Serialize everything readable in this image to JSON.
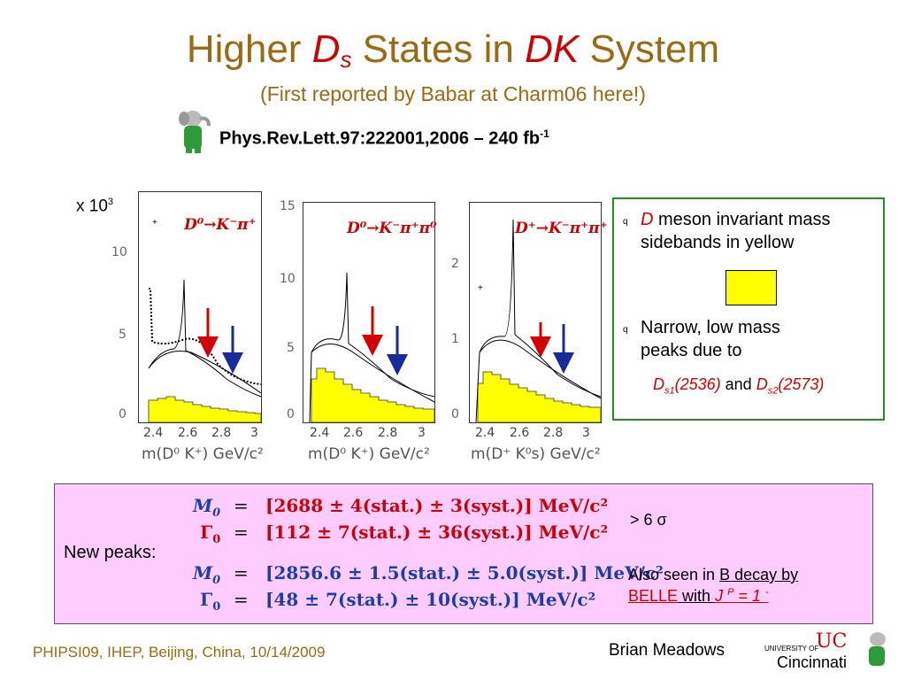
{
  "title": {
    "pre": "Higher ",
    "d": "D",
    "s": "s",
    "mid": " States in ",
    "dk": "DK",
    "post": " System"
  },
  "subtitle": "(First reported by Babar at Charm06 here!)",
  "reference": {
    "text": "Phys.Rev.Lett.97:222001,2006 – 240 fb",
    "sup": "-1"
  },
  "plots": {
    "multiplier": "x 10",
    "multiplier_exp": "3",
    "panels": [
      {
        "channel": "D⁰→K⁻π⁺",
        "yticks": [
          "10",
          "5",
          "0"
        ],
        "xticks": [
          "2.4",
          "2.6",
          "2.8",
          "3"
        ],
        "xlabel": "m(D⁰ K⁺) GeV/c²"
      },
      {
        "channel": "D⁰→K⁻π⁺π⁰",
        "yticks": [
          "15",
          "10",
          "5",
          "0"
        ],
        "xticks": [
          "2.4",
          "2.6",
          "2.8",
          "3"
        ],
        "xlabel": "m(D⁰ K⁺) GeV/c²"
      },
      {
        "channel": "D⁺→K⁻π⁺π⁺",
        "yticks": [
          "2",
          "1",
          "0"
        ],
        "xticks": [
          "2.4",
          "2.6",
          "2.8",
          "3"
        ],
        "xlabel": "m(D⁺ K⁰s) GeV/c²"
      }
    ]
  },
  "bullets": [
    {
      "marker": "q",
      "d": "D",
      "text": " meson invariant mass sidebands in yellow"
    },
    {
      "marker": "q",
      "text": "Narrow, low mass peaks due to"
    }
  ],
  "states": {
    "s1": "D",
    "s1sub": "s1",
    "s1mass": "(2536)",
    "and": " and ",
    "s2": "D",
    "s2sub": "s2",
    "s2mass": "(2573)"
  },
  "new_peaks": {
    "label": "New peaks:",
    "rows": [
      {
        "sym": "M",
        "sub": "0",
        "eq": "=",
        "val": "[2688 ± 4(stat.) ± 3(syst.)] MeV/c²"
      },
      {
        "sym": "Γ",
        "sub": "0",
        "eq": "=",
        "val": "[112 ± 7(stat.) ± 36(syst.)] MeV/c²"
      },
      {
        "sym": "M",
        "sub": "0",
        "eq": "=",
        "val": "[2856.6 ± 1.5(stat.) ± 5.0(syst.)] MeV/c²"
      },
      {
        "sym": "Γ",
        "sub": "0",
        "eq": "=",
        "val": "[48 ± 7(stat.) ± 10(syst.)] MeV/c²"
      }
    ],
    "significance": "> 6 σ",
    "also_seen": {
      "pre": "Also seen in ",
      "link": "B decay by",
      "belle": "BELLE",
      "with": " with ",
      "jp": "J ",
      "p": "P",
      "val": " = 1 ",
      "minus": "-"
    }
  },
  "footer": {
    "left": "PHIPSI09, IHEP, Beijing, China, 10/14/2009",
    "right": "Brian Meadows",
    "uc_top": "UNIVERSITY OF",
    "uc_name": "Cincinnati"
  },
  "colors": {
    "title": "#9a6a14",
    "accent": "#cc0000",
    "arrow_blue": "#1a2a9a",
    "sideband": "#ffff00",
    "box_border": "#2a8a2a",
    "peaks_bg": "#ffccff"
  }
}
